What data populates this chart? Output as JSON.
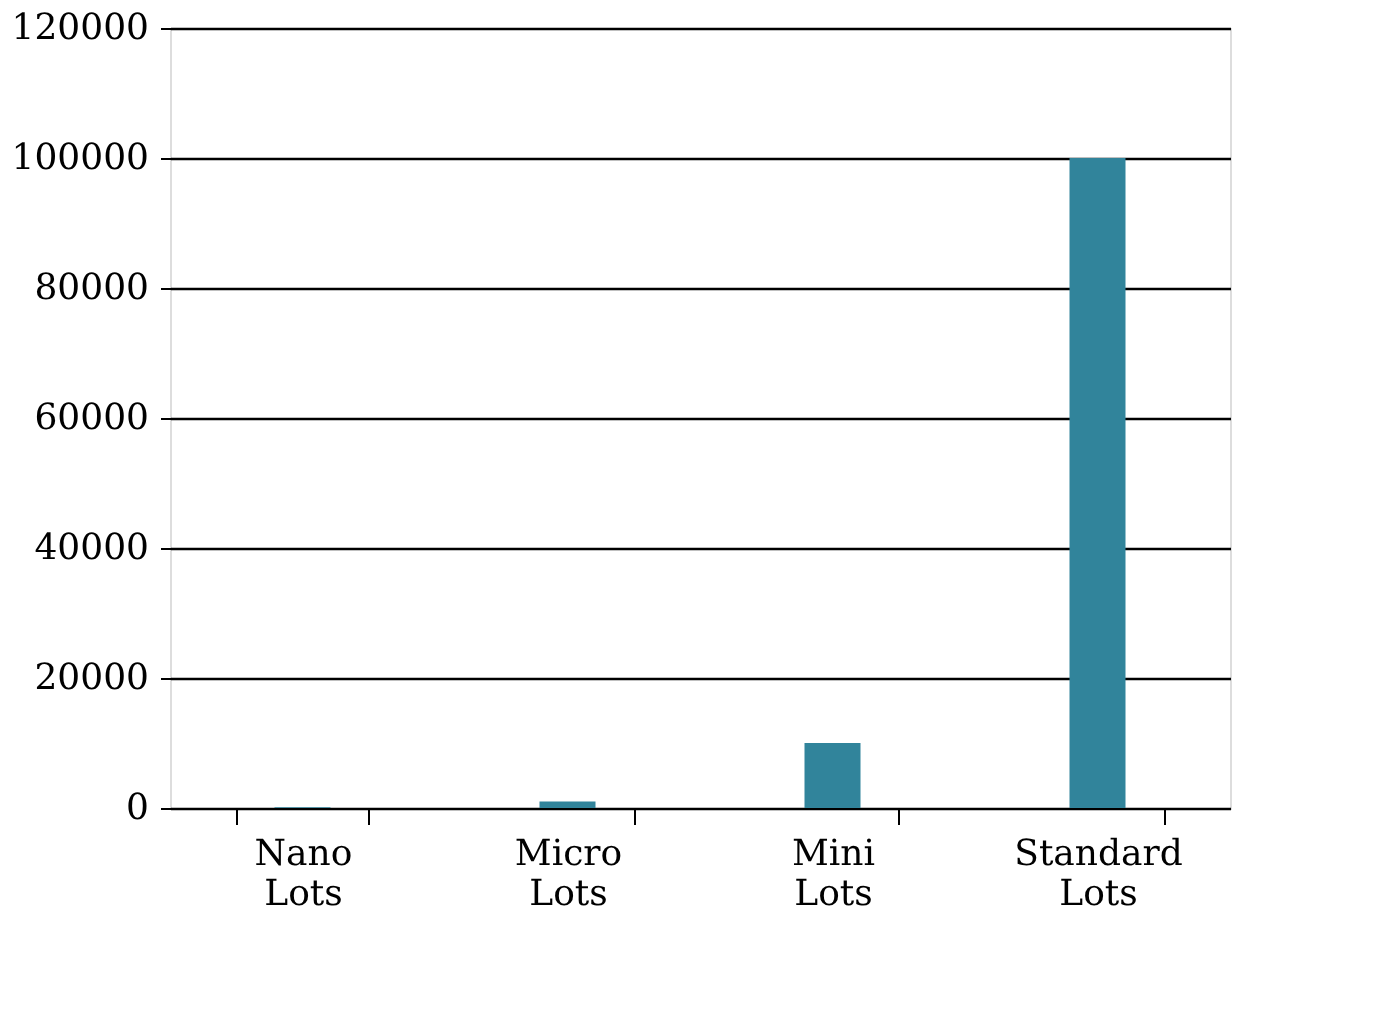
{
  "chart_data": {
    "type": "bar",
    "categories": [
      "Nano Lots",
      "Micro Lots",
      "Mini Lots",
      "Standard Lots"
    ],
    "values": [
      100,
      1000,
      10000,
      100000
    ],
    "color": "#31849b",
    "ylim": [
      0,
      120000
    ],
    "yticks": [
      0,
      20000,
      40000,
      60000,
      80000,
      100000,
      120000
    ],
    "grid": "y"
  }
}
